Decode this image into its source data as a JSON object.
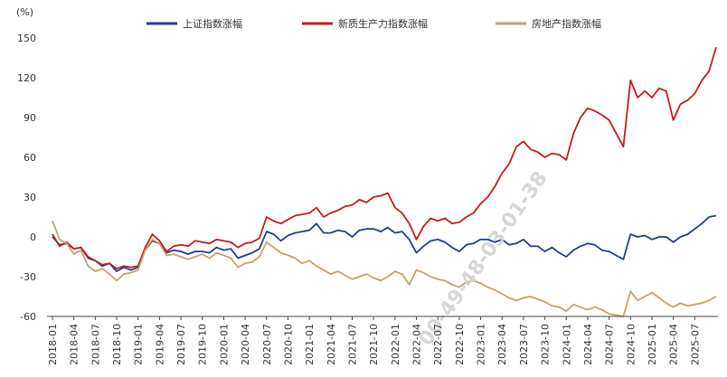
{
  "chart_data": {
    "type": "line",
    "unit_label": "(%)",
    "ylim": [
      -60,
      150
    ],
    "yticks": [
      150,
      120,
      90,
      60,
      30,
      0,
      -30,
      -60
    ],
    "x_ticks": [
      "2018-01",
      "2018-04",
      "2018-07",
      "2018-10",
      "2019-01",
      "2019-04",
      "2019-07",
      "2019-10",
      "2020-01",
      "2020-04",
      "2020-07",
      "2020-10",
      "2021-01",
      "2021-04",
      "2021-07",
      "2021-10",
      "2022-01",
      "2022-04",
      "2022-07",
      "2022-10",
      "2023-01",
      "2023-04",
      "2023-07",
      "2023-10",
      "2024-01",
      "2024-04",
      "2024-07",
      "2024-10",
      "2025-01",
      "2025-04",
      "2025-07"
    ],
    "x_end": "2025-10",
    "legend_position": "top",
    "watermark": "00-49-48-03-01-38",
    "series": [
      {
        "name": "上证指数涨幅",
        "color": "#1f3f8f",
        "points": [
          [
            "2018-01",
            0
          ],
          [
            "2018-02",
            -6
          ],
          [
            "2018-03",
            -5
          ],
          [
            "2018-04",
            -9
          ],
          [
            "2018-05",
            -8
          ],
          [
            "2018-06",
            -16
          ],
          [
            "2018-07",
            -18
          ],
          [
            "2018-08",
            -22
          ],
          [
            "2018-09",
            -20
          ],
          [
            "2018-10",
            -26
          ],
          [
            "2018-11",
            -23
          ],
          [
            "2018-12",
            -25
          ],
          [
            "2019-01",
            -23
          ],
          [
            "2019-02",
            -10
          ],
          [
            "2019-03",
            -3
          ],
          [
            "2019-04",
            -5
          ],
          [
            "2019-05",
            -12
          ],
          [
            "2019-06",
            -10
          ],
          [
            "2019-07",
            -11
          ],
          [
            "2019-08",
            -13
          ],
          [
            "2019-09",
            -11
          ],
          [
            "2019-10",
            -11
          ],
          [
            "2019-11",
            -12
          ],
          [
            "2019-12",
            -8
          ],
          [
            "2020-01",
            -10
          ],
          [
            "2020-02",
            -9
          ],
          [
            "2020-03",
            -16
          ],
          [
            "2020-04",
            -14
          ],
          [
            "2020-05",
            -12
          ],
          [
            "2020-06",
            -9
          ],
          [
            "2020-07",
            4
          ],
          [
            "2020-08",
            2
          ],
          [
            "2020-09",
            -3
          ],
          [
            "2020-10",
            1
          ],
          [
            "2020-11",
            3
          ],
          [
            "2020-12",
            4
          ],
          [
            "2021-01",
            5
          ],
          [
            "2021-02",
            10
          ],
          [
            "2021-03",
            3
          ],
          [
            "2021-04",
            3
          ],
          [
            "2021-05",
            5
          ],
          [
            "2021-06",
            4
          ],
          [
            "2021-07",
            0
          ],
          [
            "2021-08",
            5
          ],
          [
            "2021-09",
            6
          ],
          [
            "2021-10",
            6
          ],
          [
            "2021-11",
            4
          ],
          [
            "2021-12",
            7
          ],
          [
            "2022-01",
            3
          ],
          [
            "2022-02",
            4
          ],
          [
            "2022-03",
            -2
          ],
          [
            "2022-04",
            -12
          ],
          [
            "2022-05",
            -7
          ],
          [
            "2022-06",
            -3
          ],
          [
            "2022-07",
            -2
          ],
          [
            "2022-08",
            -4
          ],
          [
            "2022-09",
            -8
          ],
          [
            "2022-10",
            -11
          ],
          [
            "2022-11",
            -6
          ],
          [
            "2022-12",
            -5
          ],
          [
            "2023-01",
            -2
          ],
          [
            "2023-02",
            -2
          ],
          [
            "2023-03",
            -4
          ],
          [
            "2023-04",
            -2
          ],
          [
            "2023-05",
            -6
          ],
          [
            "2023-06",
            -5
          ],
          [
            "2023-07",
            -2
          ],
          [
            "2023-08",
            -7
          ],
          [
            "2023-09",
            -7
          ],
          [
            "2023-10",
            -11
          ],
          [
            "2023-11",
            -8
          ],
          [
            "2023-12",
            -12
          ],
          [
            "2024-01",
            -15
          ],
          [
            "2024-02",
            -10
          ],
          [
            "2024-03",
            -7
          ],
          [
            "2024-04",
            -5
          ],
          [
            "2024-05",
            -6
          ],
          [
            "2024-06",
            -10
          ],
          [
            "2024-07",
            -11
          ],
          [
            "2024-08",
            -14
          ],
          [
            "2024-09",
            -17
          ],
          [
            "2024-10",
            2
          ],
          [
            "2024-11",
            0
          ],
          [
            "2024-12",
            1
          ],
          [
            "2025-01",
            -2
          ],
          [
            "2025-02",
            0
          ],
          [
            "2025-03",
            0
          ],
          [
            "2025-04",
            -4
          ],
          [
            "2025-05",
            0
          ],
          [
            "2025-06",
            2
          ],
          [
            "2025-07",
            6
          ],
          [
            "2025-08",
            10
          ],
          [
            "2025-09",
            15
          ],
          [
            "2025-10",
            16
          ]
        ]
      },
      {
        "name": "新质生产力指数涨幅",
        "color": "#c8191e",
        "points": [
          [
            "2018-01",
            2
          ],
          [
            "2018-02",
            -7
          ],
          [
            "2018-03",
            -4
          ],
          [
            "2018-04",
            -9
          ],
          [
            "2018-05",
            -8
          ],
          [
            "2018-06",
            -15
          ],
          [
            "2018-07",
            -18
          ],
          [
            "2018-08",
            -21
          ],
          [
            "2018-09",
            -20
          ],
          [
            "2018-10",
            -24
          ],
          [
            "2018-11",
            -22
          ],
          [
            "2018-12",
            -23
          ],
          [
            "2019-01",
            -22
          ],
          [
            "2019-02",
            -8
          ],
          [
            "2019-03",
            2
          ],
          [
            "2019-04",
            -3
          ],
          [
            "2019-05",
            -11
          ],
          [
            "2019-06",
            -7
          ],
          [
            "2019-07",
            -6
          ],
          [
            "2019-08",
            -7
          ],
          [
            "2019-09",
            -3
          ],
          [
            "2019-10",
            -4
          ],
          [
            "2019-11",
            -5
          ],
          [
            "2019-12",
            -2
          ],
          [
            "2020-01",
            -3
          ],
          [
            "2020-02",
            -4
          ],
          [
            "2020-03",
            -8
          ],
          [
            "2020-04",
            -5
          ],
          [
            "2020-05",
            -4
          ],
          [
            "2020-06",
            -1
          ],
          [
            "2020-07",
            15
          ],
          [
            "2020-08",
            12
          ],
          [
            "2020-09",
            10
          ],
          [
            "2020-10",
            13
          ],
          [
            "2020-11",
            16
          ],
          [
            "2020-12",
            17
          ],
          [
            "2021-01",
            18
          ],
          [
            "2021-02",
            22
          ],
          [
            "2021-03",
            15
          ],
          [
            "2021-04",
            18
          ],
          [
            "2021-05",
            20
          ],
          [
            "2021-06",
            23
          ],
          [
            "2021-07",
            24
          ],
          [
            "2021-08",
            28
          ],
          [
            "2021-09",
            26
          ],
          [
            "2021-10",
            30
          ],
          [
            "2021-11",
            31
          ],
          [
            "2021-12",
            33
          ],
          [
            "2022-01",
            22
          ],
          [
            "2022-02",
            18
          ],
          [
            "2022-03",
            10
          ],
          [
            "2022-04",
            -2
          ],
          [
            "2022-05",
            8
          ],
          [
            "2022-06",
            14
          ],
          [
            "2022-07",
            12
          ],
          [
            "2022-08",
            14
          ],
          [
            "2022-09",
            10
          ],
          [
            "2022-10",
            11
          ],
          [
            "2022-11",
            15
          ],
          [
            "2022-12",
            18
          ],
          [
            "2023-01",
            25
          ],
          [
            "2023-02",
            30
          ],
          [
            "2023-03",
            38
          ],
          [
            "2023-04",
            48
          ],
          [
            "2023-05",
            55
          ],
          [
            "2023-06",
            68
          ],
          [
            "2023-07",
            72
          ],
          [
            "2023-08",
            66
          ],
          [
            "2023-09",
            64
          ],
          [
            "2023-10",
            60
          ],
          [
            "2023-11",
            63
          ],
          [
            "2023-12",
            62
          ],
          [
            "2024-01",
            58
          ],
          [
            "2024-02",
            78
          ],
          [
            "2024-03",
            90
          ],
          [
            "2024-04",
            97
          ],
          [
            "2024-05",
            95
          ],
          [
            "2024-06",
            92
          ],
          [
            "2024-07",
            88
          ],
          [
            "2024-08",
            78
          ],
          [
            "2024-09",
            68
          ],
          [
            "2024-10",
            118
          ],
          [
            "2024-11",
            105
          ],
          [
            "2024-12",
            110
          ],
          [
            "2025-01",
            105
          ],
          [
            "2025-02",
            112
          ],
          [
            "2025-03",
            110
          ],
          [
            "2025-04",
            88
          ],
          [
            "2025-05",
            100
          ],
          [
            "2025-06",
            103
          ],
          [
            "2025-07",
            108
          ],
          [
            "2025-08",
            118
          ],
          [
            "2025-09",
            125
          ],
          [
            "2025-10",
            143
          ]
        ]
      },
      {
        "name": "房地产指数涨幅",
        "color": "#c6a16a",
        "points": [
          [
            "2018-01",
            12
          ],
          [
            "2018-02",
            -2
          ],
          [
            "2018-03",
            -5
          ],
          [
            "2018-04",
            -13
          ],
          [
            "2018-05",
            -10
          ],
          [
            "2018-06",
            -22
          ],
          [
            "2018-07",
            -26
          ],
          [
            "2018-08",
            -24
          ],
          [
            "2018-09",
            -28
          ],
          [
            "2018-10",
            -33
          ],
          [
            "2018-11",
            -28
          ],
          [
            "2018-12",
            -27
          ],
          [
            "2019-01",
            -25
          ],
          [
            "2019-02",
            -10
          ],
          [
            "2019-03",
            -2
          ],
          [
            "2019-04",
            -5
          ],
          [
            "2019-05",
            -14
          ],
          [
            "2019-06",
            -13
          ],
          [
            "2019-07",
            -15
          ],
          [
            "2019-08",
            -17
          ],
          [
            "2019-09",
            -15
          ],
          [
            "2019-10",
            -13
          ],
          [
            "2019-11",
            -16
          ],
          [
            "2019-12",
            -12
          ],
          [
            "2020-01",
            -14
          ],
          [
            "2020-02",
            -16
          ],
          [
            "2020-03",
            -23
          ],
          [
            "2020-04",
            -20
          ],
          [
            "2020-05",
            -19
          ],
          [
            "2020-06",
            -15
          ],
          [
            "2020-07",
            -4
          ],
          [
            "2020-08",
            -8
          ],
          [
            "2020-09",
            -12
          ],
          [
            "2020-10",
            -14
          ],
          [
            "2020-11",
            -16
          ],
          [
            "2020-12",
            -20
          ],
          [
            "2021-01",
            -18
          ],
          [
            "2021-02",
            -22
          ],
          [
            "2021-03",
            -25
          ],
          [
            "2021-04",
            -28
          ],
          [
            "2021-05",
            -26
          ],
          [
            "2021-06",
            -29
          ],
          [
            "2021-07",
            -32
          ],
          [
            "2021-08",
            -30
          ],
          [
            "2021-09",
            -28
          ],
          [
            "2021-10",
            -31
          ],
          [
            "2021-11",
            -33
          ],
          [
            "2021-12",
            -30
          ],
          [
            "2022-01",
            -26
          ],
          [
            "2022-02",
            -28
          ],
          [
            "2022-03",
            -36
          ],
          [
            "2022-04",
            -25
          ],
          [
            "2022-05",
            -27
          ],
          [
            "2022-06",
            -30
          ],
          [
            "2022-07",
            -32
          ],
          [
            "2022-08",
            -33
          ],
          [
            "2022-09",
            -36
          ],
          [
            "2022-10",
            -38
          ],
          [
            "2022-11",
            -34
          ],
          [
            "2022-12",
            -33
          ],
          [
            "2023-01",
            -35
          ],
          [
            "2023-02",
            -38
          ],
          [
            "2023-03",
            -40
          ],
          [
            "2023-04",
            -43
          ],
          [
            "2023-05",
            -46
          ],
          [
            "2023-06",
            -48
          ],
          [
            "2023-07",
            -46
          ],
          [
            "2023-08",
            -45
          ],
          [
            "2023-09",
            -47
          ],
          [
            "2023-10",
            -49
          ],
          [
            "2023-11",
            -52
          ],
          [
            "2023-12",
            -53
          ],
          [
            "2024-01",
            -56
          ],
          [
            "2024-02",
            -51
          ],
          [
            "2024-03",
            -53
          ],
          [
            "2024-04",
            -55
          ],
          [
            "2024-05",
            -53
          ],
          [
            "2024-06",
            -55
          ],
          [
            "2024-07",
            -58
          ],
          [
            "2024-08",
            -59
          ],
          [
            "2024-09",
            -60
          ],
          [
            "2024-10",
            -41
          ],
          [
            "2024-11",
            -48
          ],
          [
            "2024-12",
            -45
          ],
          [
            "2025-01",
            -42
          ],
          [
            "2025-02",
            -46
          ],
          [
            "2025-03",
            -50
          ],
          [
            "2025-04",
            -53
          ],
          [
            "2025-05",
            -50
          ],
          [
            "2025-06",
            -52
          ],
          [
            "2025-07",
            -51
          ],
          [
            "2025-08",
            -50
          ],
          [
            "2025-09",
            -48
          ],
          [
            "2025-10",
            -45
          ]
        ]
      }
    ]
  }
}
